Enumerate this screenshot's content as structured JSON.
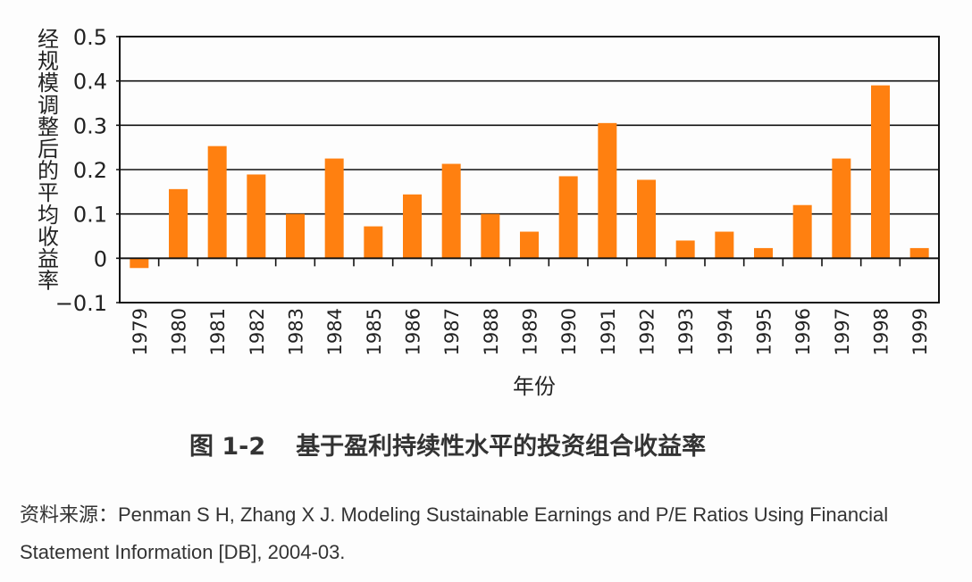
{
  "chart_data": {
    "type": "bar",
    "ylabel": "经规模调整后的平均收益率",
    "xlabel": "年份",
    "ylim": [
      -0.1,
      0.5
    ],
    "yticks": [
      "0.5",
      "0.4",
      "0.3",
      "0.2",
      "0.1",
      "0",
      "-0.1"
    ],
    "grid": true,
    "bar_color": "#ff8010",
    "categories": [
      "1979",
      "1980",
      "1981",
      "1982",
      "1983",
      "1984",
      "1985",
      "1986",
      "1987",
      "1988",
      "1989",
      "1990",
      "1991",
      "1992",
      "1993",
      "1994",
      "1995",
      "1996",
      "1997",
      "1998",
      "1999"
    ],
    "values": [
      -0.022,
      0.156,
      0.253,
      0.189,
      0.1,
      0.225,
      0.072,
      0.144,
      0.213,
      0.1,
      0.06,
      0.185,
      0.305,
      0.177,
      0.04,
      0.06,
      0.023,
      0.12,
      0.225,
      0.39,
      0.023
    ]
  },
  "caption": {
    "number": "图 1-2",
    "title": "基于盈利持续性水平的投资组合收益率"
  },
  "source": "资料来源：Penman S H, Zhang X J. Modeling Sustainable Earnings and P/E Ratios Using Financial Statement Information [DB], 2004-03."
}
